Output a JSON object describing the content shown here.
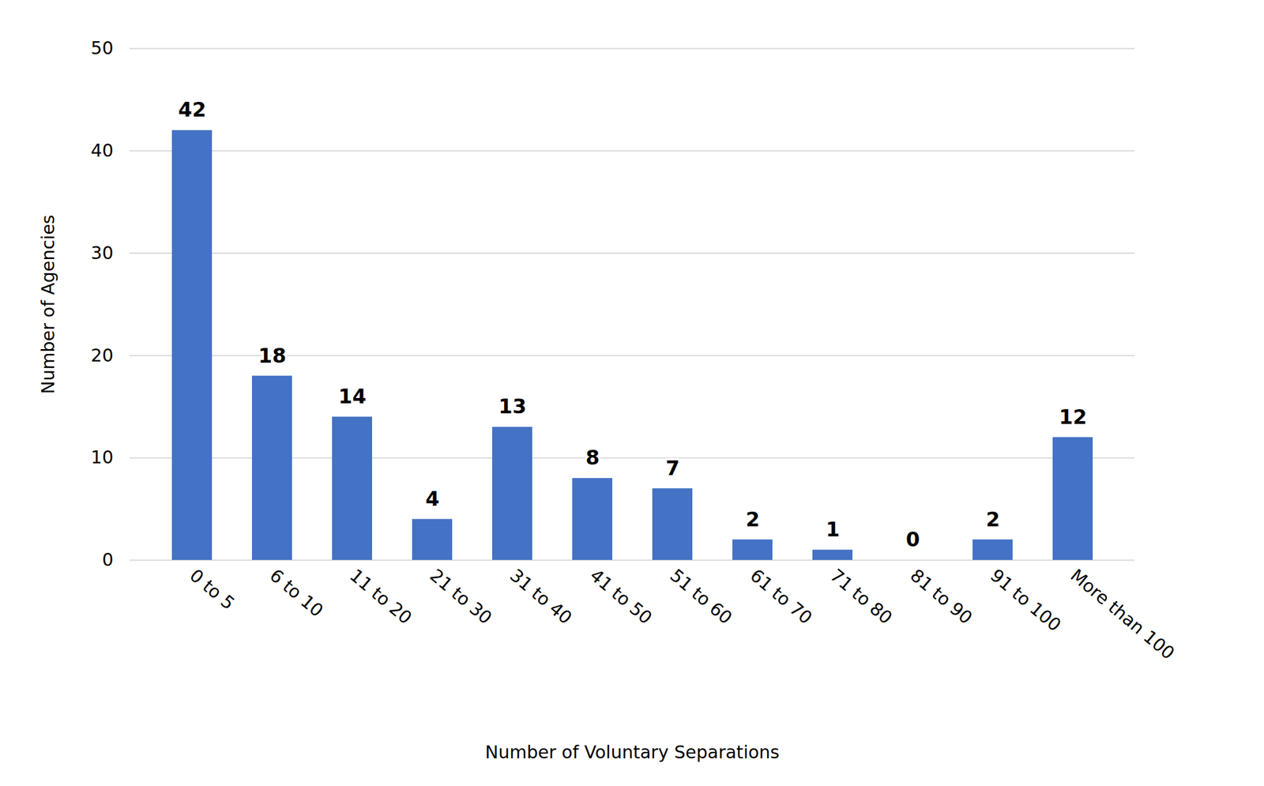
{
  "chart_data": {
    "type": "bar",
    "x_label": "Number of Voluntary Separations",
    "y_label": "Number of Agencies",
    "categories": [
      "0 to 5",
      "6 to 10",
      "11 to 20",
      "21 to 30",
      "31 to 40",
      "41 to 50",
      "51 to 60",
      "61 to 70",
      "71 to 80",
      "81 to 90",
      "91 to 100",
      "More than 100"
    ],
    "values": [
      42,
      18,
      14,
      4,
      13,
      8,
      7,
      2,
      1,
      0,
      2,
      12
    ],
    "color": "#4472c4",
    "ylim": [
      0,
      50
    ],
    "yticks": [
      0,
      10,
      20,
      30,
      40,
      50
    ],
    "grid": true,
    "data_labels": true
  }
}
